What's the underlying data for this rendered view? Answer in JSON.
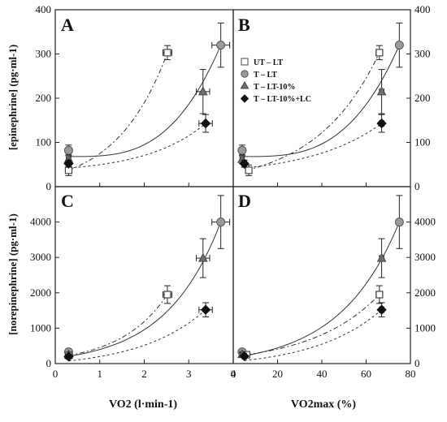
{
  "chart_data": [
    {
      "id": "A",
      "type": "scatter",
      "panel_label": "A",
      "ylabel": "[epinephrine] (pg·ml-1)",
      "xlim": [
        0,
        4
      ],
      "ylim": [
        0,
        400
      ],
      "xticks": [],
      "yticks": [
        "0",
        "100",
        "200",
        "300",
        "400"
      ],
      "yticks_side": "left",
      "series": [
        {
          "key": "ut",
          "points": [
            {
              "x": 0.3,
              "y": 37,
              "xerr": 0.05,
              "yerr": 12
            },
            {
              "x": 2.52,
              "y": 303,
              "xerr": 0.1,
              "yerr": 16
            }
          ],
          "fit": {
            "kind": "exp",
            "a": 34,
            "b": 0.87,
            "x0": 0.3,
            "x1": 2.52
          }
        },
        {
          "key": "t",
          "points": [
            {
              "x": 0.3,
              "y": 82,
              "xerr": 0.05,
              "yerr": 12
            },
            {
              "x": 3.72,
              "y": 320,
              "xerr": 0.2,
              "yerr": 50
            }
          ],
          "fit": {
            "kind": "exp",
            "a": 64.5,
            "b": 0.0,
            "x0": 0.3,
            "x1": 3.72
          }
        },
        {
          "key": "t10",
          "points": [
            {
              "x": 0.3,
              "y": 62,
              "xerr": 0.05,
              "yerr": 10
            },
            {
              "x": 3.32,
              "y": 215,
              "xerr": 0.15,
              "yerr": 50
            }
          ],
          "fit": null
        },
        {
          "key": "t10lc",
          "points": [
            {
              "x": 0.3,
              "y": 52,
              "xerr": 0.05,
              "yerr": 8
            },
            {
              "x": 3.38,
              "y": 143,
              "xerr": 0.15,
              "yerr": 20
            }
          ],
          "fit": {
            "kind": "exp",
            "a": 38,
            "b": 0.75,
            "x0": 0.3,
            "x1": 3.38
          }
        }
      ]
    },
    {
      "id": "B",
      "type": "scatter",
      "panel_label": "B",
      "ylabel": "",
      "xlim": [
        0,
        80
      ],
      "ylim": [
        0,
        400
      ],
      "xticks": [],
      "yticks": [
        "0",
        "100",
        "200",
        "300",
        "400"
      ],
      "yticks_side": "right",
      "series": [
        {
          "key": "ut",
          "points": [
            {
              "x": 7,
              "y": 37,
              "xerr": 1.2,
              "yerr": 12
            },
            {
              "x": 66,
              "y": 303,
              "xerr": 1.5,
              "yerr": 16
            }
          ],
          "fit": {
            "kind": "exp",
            "a": 34,
            "b": 0.035,
            "x0": 6,
            "x1": 66
          }
        },
        {
          "key": "t",
          "points": [
            {
              "x": 4,
              "y": 82,
              "xerr": 1,
              "yerr": 12
            },
            {
              "x": 75,
              "y": 320,
              "xerr": 1,
              "yerr": 50
            }
          ],
          "fit": {
            "kind": "exp",
            "a": 64.5,
            "b": 0.0,
            "x0": 4,
            "x1": 75
          }
        },
        {
          "key": "t10",
          "points": [
            {
              "x": 4,
              "y": 62,
              "xerr": 1,
              "yerr": 10
            },
            {
              "x": 67,
              "y": 215,
              "xerr": 1,
              "yerr": 50
            }
          ],
          "fit": null
        },
        {
          "key": "t10lc",
          "points": [
            {
              "x": 5,
              "y": 52,
              "xerr": 1,
              "yerr": 8
            },
            {
              "x": 67,
              "y": 143,
              "xerr": 1,
              "yerr": 20
            }
          ],
          "fit": {
            "kind": "exp",
            "a": 38,
            "b": 0.031,
            "x0": 5,
            "x1": 67
          }
        }
      ]
    },
    {
      "id": "C",
      "type": "scatter",
      "panel_label": "C",
      "ylabel": "[norepinephrine] (pg·ml-1)",
      "xlabel": "VO2 (l·min-1)",
      "xlim": [
        0,
        4
      ],
      "ylim": [
        0,
        5000
      ],
      "xticks": [
        "0",
        "1",
        "2",
        "3",
        "4"
      ],
      "yticks": [
        "0",
        "1000",
        "2000",
        "3000",
        "4000"
      ],
      "yticks_side": "left",
      "series": [
        {
          "key": "ut",
          "points": [
            {
              "x": 0.3,
              "y": 230,
              "xerr": 0.05,
              "yerr": 50
            },
            {
              "x": 2.52,
              "y": 1950,
              "xerr": 0.1,
              "yerr": 250
            }
          ],
          "fit": {
            "kind": "exp",
            "a": 180,
            "b": 0.95,
            "x0": 0.3,
            "x1": 2.52
          }
        },
        {
          "key": "t",
          "points": [
            {
              "x": 0.3,
              "y": 330,
              "xerr": 0.05,
              "yerr": 60
            },
            {
              "x": 3.72,
              "y": 4000,
              "xerr": 0.2,
              "yerr": 750
            }
          ],
          "fit": {
            "kind": "exp",
            "a": 200,
            "b": 0.81,
            "x0": 0.3,
            "x1": 3.72
          }
        },
        {
          "key": "t10",
          "points": [
            {
              "x": 0.3,
              "y": 250,
              "xerr": 0.05,
              "yerr": 50
            },
            {
              "x": 3.32,
              "y": 2980,
              "xerr": 0.15,
              "yerr": 550
            }
          ],
          "fit": null
        },
        {
          "key": "t10lc",
          "points": [
            {
              "x": 0.3,
              "y": 200,
              "xerr": 0.05,
              "yerr": 40
            },
            {
              "x": 3.38,
              "y": 1520,
              "xerr": 0.15,
              "yerr": 200
            }
          ],
          "fit": {
            "kind": "exp",
            "a": 150,
            "b": 0.68,
            "x0": 0.3,
            "x1": 3.38
          }
        }
      ]
    },
    {
      "id": "D",
      "type": "scatter",
      "panel_label": "D",
      "ylabel": "",
      "xlabel": "VO2max (%)",
      "xlim": [
        0,
        80
      ],
      "ylim": [
        0,
        5000
      ],
      "xticks": [
        "0",
        "20",
        "40",
        "60",
        "80"
      ],
      "yticks": [
        "0",
        "1000",
        "2000",
        "3000",
        "4000"
      ],
      "yticks_side": "right",
      "series": [
        {
          "key": "ut",
          "points": [
            {
              "x": 6,
              "y": 250,
              "xerr": 1.2,
              "yerr": 50
            },
            {
              "x": 66,
              "y": 1950,
              "xerr": 1.5,
              "yerr": 250
            }
          ],
          "fit": {
            "kind": "exp",
            "a": 190,
            "b": 0.033,
            "x0": 6,
            "x1": 66
          }
        },
        {
          "key": "t",
          "points": [
            {
              "x": 4,
              "y": 330,
              "xerr": 1,
              "yerr": 60
            },
            {
              "x": 75,
              "y": 4000,
              "xerr": 1,
              "yerr": 750
            }
          ],
          "fit": {
            "kind": "exp",
            "a": 230,
            "b": 0.037,
            "x0": 4,
            "x1": 75
          }
        },
        {
          "key": "t10",
          "points": [
            {
              "x": 4,
              "y": 260,
              "xerr": 1,
              "yerr": 50
            },
            {
              "x": 67,
              "y": 2980,
              "xerr": 1,
              "yerr": 550
            }
          ],
          "fit": null
        },
        {
          "key": "t10lc",
          "points": [
            {
              "x": 5,
              "y": 210,
              "xerr": 1,
              "yerr": 40
            },
            {
              "x": 67,
              "y": 1520,
              "xerr": 1,
              "yerr": 200
            }
          ],
          "fit": {
            "kind": "exp",
            "a": 170,
            "b": 0.033,
            "x0": 5,
            "x1": 67
          }
        }
      ]
    }
  ],
  "legend": {
    "placement": "panel-B-middle",
    "entries": [
      {
        "key": "ut",
        "label": "UT – LT",
        "marker": "open-square"
      },
      {
        "key": "t",
        "label": "T – LT",
        "marker": "circle"
      },
      {
        "key": "t10",
        "label": "T – LT-10%",
        "marker": "triangle"
      },
      {
        "key": "t10lc",
        "label": "T – LT-10%+LC",
        "marker": "diamond"
      }
    ]
  },
  "styles": {
    "ut": {
      "fill": "#ffffff",
      "stroke": "#444444",
      "dash": "6 3 2 3"
    },
    "t": {
      "fill": "#9a9a9a",
      "stroke": "#555555",
      "dash": ""
    },
    "t10": {
      "fill": "#6e6e6e",
      "stroke": "#444444",
      "dash": ""
    },
    "t10lc": {
      "fill": "#111111",
      "stroke": "#111111",
      "dash": "3 3"
    }
  }
}
